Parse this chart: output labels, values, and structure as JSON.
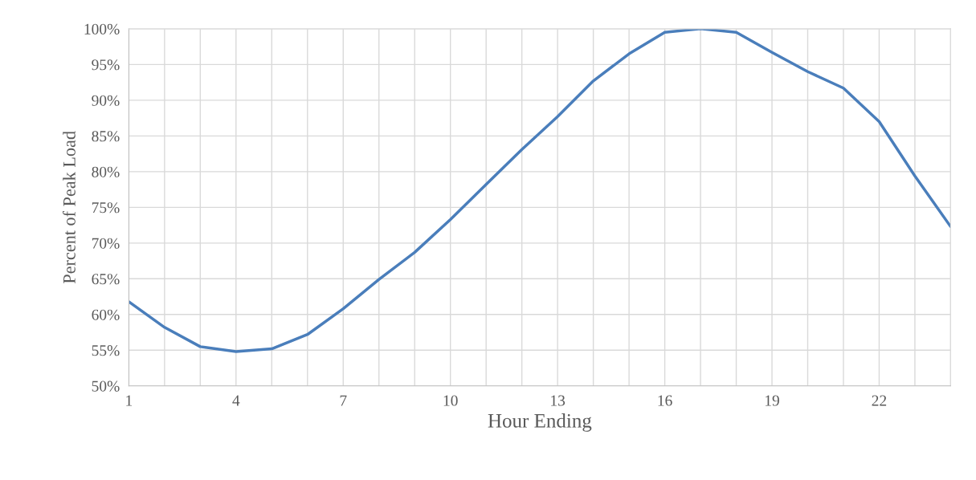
{
  "chart_data": {
    "type": "line",
    "xlabel": "Hour Ending",
    "ylabel": "Percent of Peak Load",
    "x": [
      1,
      2,
      3,
      4,
      5,
      6,
      7,
      8,
      9,
      10,
      11,
      12,
      13,
      14,
      15,
      16,
      17,
      18,
      19,
      20,
      21,
      22,
      23,
      24
    ],
    "series": [
      {
        "color": "#4a7ebb",
        "values": [
          61.8,
          58.2,
          55.5,
          54.8,
          55.2,
          57.2,
          60.8,
          64.9,
          68.7,
          73.3,
          78.2,
          83.1,
          87.7,
          92.7,
          96.5,
          99.5,
          100,
          99.5,
          96.7,
          94.0,
          91.7,
          87.0,
          79.4,
          72.3
        ]
      }
    ],
    "xlim": [
      1,
      24
    ],
    "xticks": [
      1,
      {
        "value": 2,
        "label": null
      },
      {
        "value": 3,
        "label": null
      },
      4,
      {
        "value": 5,
        "label": null
      },
      {
        "value": 6,
        "label": null
      },
      7,
      {
        "value": 8,
        "label": null
      },
      {
        "value": 9,
        "label": null
      },
      10,
      {
        "value": 11,
        "label": null
      },
      {
        "value": 12,
        "label": null
      },
      13,
      {
        "value": 14,
        "label": null
      },
      {
        "value": 15,
        "label": null
      },
      16,
      {
        "value": 17,
        "label": null
      },
      {
        "value": 18,
        "label": null
      },
      19,
      {
        "value": 20,
        "label": null
      },
      {
        "value": 21,
        "label": null
      },
      22,
      {
        "value": 23,
        "label": null
      },
      {
        "value": 24,
        "label": null
      }
    ],
    "ylim": [
      50,
      100
    ],
    "yticks": [
      {
        "value": 50,
        "label": "50%"
      },
      {
        "value": 55,
        "label": "55%"
      },
      {
        "value": 60,
        "label": "60%"
      },
      {
        "value": 65,
        "label": "65%"
      },
      {
        "value": 70,
        "label": "70%"
      },
      {
        "value": 75,
        "label": "75%"
      },
      {
        "value": 80,
        "label": "80%"
      },
      {
        "value": 85,
        "label": "85%"
      },
      {
        "value": 90,
        "label": "90%"
      },
      {
        "value": 95,
        "label": "95%"
      },
      {
        "value": 100,
        "label": "100%"
      }
    ],
    "grid": true,
    "marker": "none",
    "line_style": "solid"
  }
}
